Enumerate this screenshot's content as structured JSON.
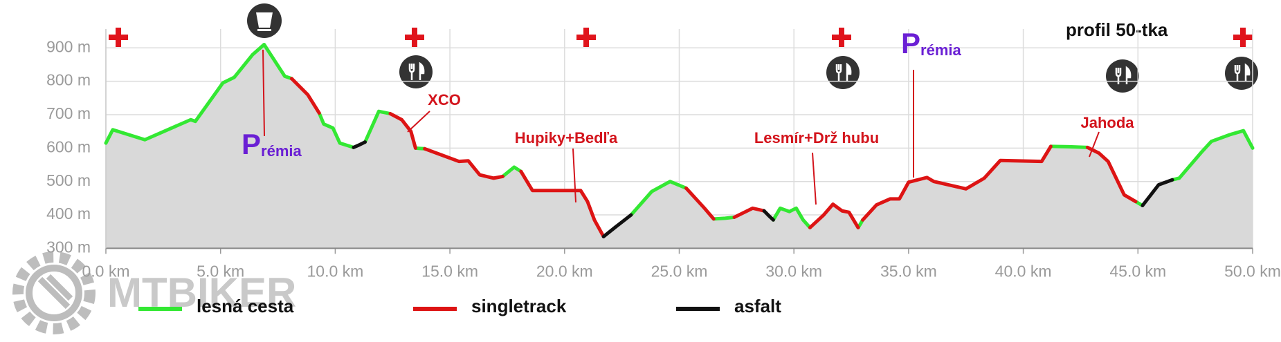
{
  "chart_data": {
    "type": "line",
    "title": "profil 50-tka",
    "watermark": "MTBIKER",
    "x": [
      0,
      0.3,
      1.7,
      3.7,
      3.9,
      5.1,
      5.6,
      6.4,
      6.9,
      7.8,
      8.1,
      8.8,
      9.3,
      9.5,
      9.9,
      10.2,
      10.8,
      11.0,
      11.3,
      11.9,
      12.4,
      12.9,
      13.3,
      13.5,
      13.7,
      13.9,
      15.4,
      15.8,
      16.3,
      16.9,
      17.3,
      17.8,
      18.1,
      18.6,
      20.7,
      21.0,
      21.3,
      21.7,
      22.3,
      22.9,
      23.8,
      24.6,
      25.3,
      26.1,
      26.5,
      27.0,
      27.4,
      28.2,
      28.7,
      28.9,
      29.1,
      29.4,
      29.8,
      30.1,
      30.4,
      30.7,
      31.3,
      31.7,
      32.1,
      32.4,
      32.8,
      32.9,
      33.0,
      33.6,
      34.2,
      34.6,
      35.0,
      35.8,
      36.1,
      37.5,
      38.3,
      39.0,
      40.8,
      41.2,
      42.0,
      42.8,
      43.3,
      43.7,
      44.4,
      44.9,
      45.05,
      45.2,
      45.9,
      46.5,
      46.8,
      47.8,
      48.2,
      49.0,
      49.6,
      50.0
    ],
    "series": [
      {
        "name": "lesná cesta",
        "color": "#33e833",
        "values": [
          615,
          655,
          625,
          685,
          680,
          795,
          812,
          880,
          910,
          815,
          808,
          null,
          705,
          672,
          660,
          615,
          602,
          null,
          618,
          710,
          703,
          null,
          null,
          600,
          599,
          598,
          null,
          null,
          null,
          null,
          515,
          543,
          530,
          null,
          null,
          null,
          null,
          null,
          null,
          400,
          470,
          500,
          480,
          null,
          388,
          390,
          393,
          null,
          null,
          null,
          385,
          420,
          410,
          420,
          385,
          362,
          null,
          null,
          null,
          null,
          362,
          373,
          385,
          null,
          null,
          null,
          null,
          null,
          null,
          null,
          null,
          null,
          null,
          605,
          604,
          602,
          null,
          null,
          null,
          440,
          434,
          428,
          null,
          505,
          510,
          590,
          620,
          640,
          652,
          600
        ]
      },
      {
        "name": "singletrack",
        "color": "#dd1414",
        "values": [
          null,
          null,
          null,
          null,
          null,
          null,
          null,
          null,
          null,
          null,
          808,
          760,
          705,
          null,
          null,
          null,
          null,
          null,
          null,
          null,
          703,
          685,
          650,
          600,
          null,
          598,
          560,
          562,
          520,
          510,
          515,
          null,
          530,
          473,
          473,
          440,
          385,
          335,
          null,
          null,
          null,
          null,
          480,
          420,
          388,
          null,
          393,
          420,
          412,
          null,
          null,
          null,
          null,
          null,
          null,
          362,
          400,
          432,
          412,
          408,
          362,
          null,
          385,
          430,
          448,
          448,
          498,
          512,
          500,
          478,
          510,
          563,
          560,
          605,
          null,
          602,
          585,
          560,
          460,
          440,
          null,
          null,
          null,
          null,
          null,
          null,
          null,
          null,
          null,
          null
        ]
      },
      {
        "name": "asfalt",
        "color": "#111111",
        "values": [
          null,
          null,
          null,
          null,
          null,
          null,
          null,
          null,
          null,
          null,
          null,
          null,
          null,
          null,
          null,
          null,
          602,
          608,
          618,
          null,
          null,
          null,
          null,
          null,
          null,
          null,
          null,
          null,
          null,
          null,
          null,
          null,
          null,
          null,
          null,
          null,
          null,
          335,
          368,
          400,
          null,
          null,
          null,
          null,
          null,
          null,
          null,
          null,
          412,
          398,
          385,
          null,
          null,
          null,
          null,
          null,
          null,
          null,
          null,
          null,
          null,
          null,
          null,
          null,
          null,
          null,
          null,
          null,
          null,
          null,
          null,
          null,
          null,
          null,
          null,
          null,
          null,
          null,
          null,
          null,
          null,
          428,
          490,
          505,
          null,
          null,
          null,
          null,
          null,
          null
        ]
      }
    ],
    "xlim": [
      0,
      50
    ],
    "ylim": [
      300,
      950
    ],
    "xticks": [
      {
        "value": 0,
        "label": "0.0 km"
      },
      {
        "value": 5,
        "label": "5.0 km"
      },
      {
        "value": 10,
        "label": "10.0 km"
      },
      {
        "value": 15,
        "label": "15.0 km"
      },
      {
        "value": 20,
        "label": "20.0 km"
      },
      {
        "value": 25,
        "label": "25.0 km"
      },
      {
        "value": 30,
        "label": "30.0 km"
      },
      {
        "value": 35,
        "label": "35.0 km"
      },
      {
        "value": 40,
        "label": "40.0 km"
      },
      {
        "value": 45,
        "label": "45.0 km"
      },
      {
        "value": 50,
        "label": "50.0 km"
      }
    ],
    "yticks": [
      {
        "value": 300,
        "label": "300 m"
      },
      {
        "value": 400,
        "label": "400 m"
      },
      {
        "value": 500,
        "label": "500 m"
      },
      {
        "value": 600,
        "label": "600 m"
      },
      {
        "value": 700,
        "label": "700 m"
      },
      {
        "value": 800,
        "label": "800 m"
      },
      {
        "value": 900,
        "label": "900 m"
      }
    ],
    "grid": true,
    "annotations": [
      {
        "text": "Prémia"
      },
      {
        "text": "XCO"
      },
      {
        "text": "Hupiky+Bedľa"
      },
      {
        "text": "Lesmír+Drž hubu"
      },
      {
        "text": "Prémia"
      },
      {
        "text": "Jahoda"
      }
    ]
  }
}
